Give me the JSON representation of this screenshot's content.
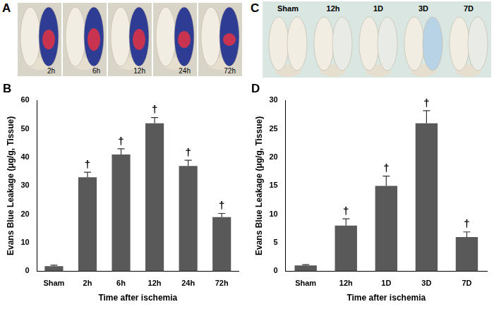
{
  "photos": [
    {
      "panel": "A",
      "labels": [
        "2h",
        "6h",
        "12h",
        "24h",
        "72h"
      ]
    },
    {
      "panel": "C",
      "labels": [
        "Sham",
        "12h",
        "1D",
        "3D",
        "7D"
      ]
    }
  ],
  "chart_data": [
    {
      "type": "bar",
      "title": "B",
      "categories": [
        "Sham",
        "2h",
        "6h",
        "12h",
        "24h",
        "72h"
      ],
      "values": [
        1.8,
        33,
        41,
        52,
        37,
        19
      ],
      "errors": [
        0.3,
        1.8,
        2,
        2,
        2,
        1.3
      ],
      "annotations": [
        null,
        "†",
        "†",
        "†",
        "†",
        "†"
      ],
      "color": "#595959",
      "xlabel": "Time after ischemia",
      "ylabel": "Evans Blue Leakage (μg/g, Tissue)",
      "ylim": [
        0,
        60
      ],
      "yticks": [
        0,
        10,
        20,
        30,
        40,
        50,
        60
      ],
      "grid": false
    },
    {
      "type": "bar",
      "title": "D",
      "categories": [
        "Sham",
        "12h",
        "1D",
        "3D",
        "7D"
      ],
      "values": [
        1,
        8,
        15,
        26,
        6
      ],
      "errors": [
        0.15,
        1.2,
        1.7,
        2.2,
        0.9
      ],
      "annotations": [
        null,
        "†",
        "†",
        "†",
        "†"
      ],
      "color": "#595959",
      "xlabel": "Time after ischemia",
      "ylabel": "Evans Blue Leakage (μg/g, Tissue)",
      "ylim": [
        0,
        30
      ],
      "yticks": [
        0,
        5,
        10,
        15,
        20,
        25,
        30
      ],
      "grid": false
    }
  ]
}
